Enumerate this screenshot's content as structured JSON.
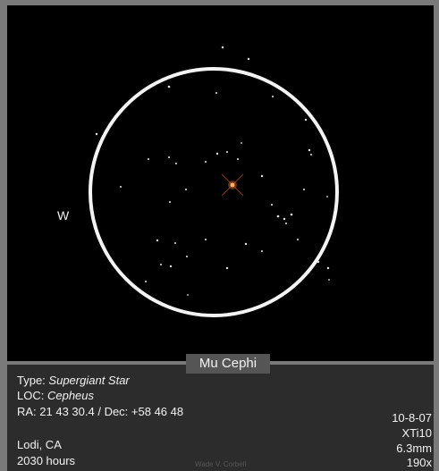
{
  "sketch": {
    "direction_label": "W",
    "title": "Mu Cephi"
  },
  "info": {
    "type_label": "Type:",
    "type": "Supergiant Star",
    "loc_label": "LOC:",
    "loc": "Cepheus",
    "coordinates": "RA:  21 43 30.4 / Dec: +58 46 48",
    "location": "Lodi, CA",
    "time": "2030 hours",
    "signature": "Wade V. Corbell",
    "date": "10-8-07",
    "telescope": "XTi10",
    "eyepiece": "6.3mm",
    "magnification": "190x"
  }
}
